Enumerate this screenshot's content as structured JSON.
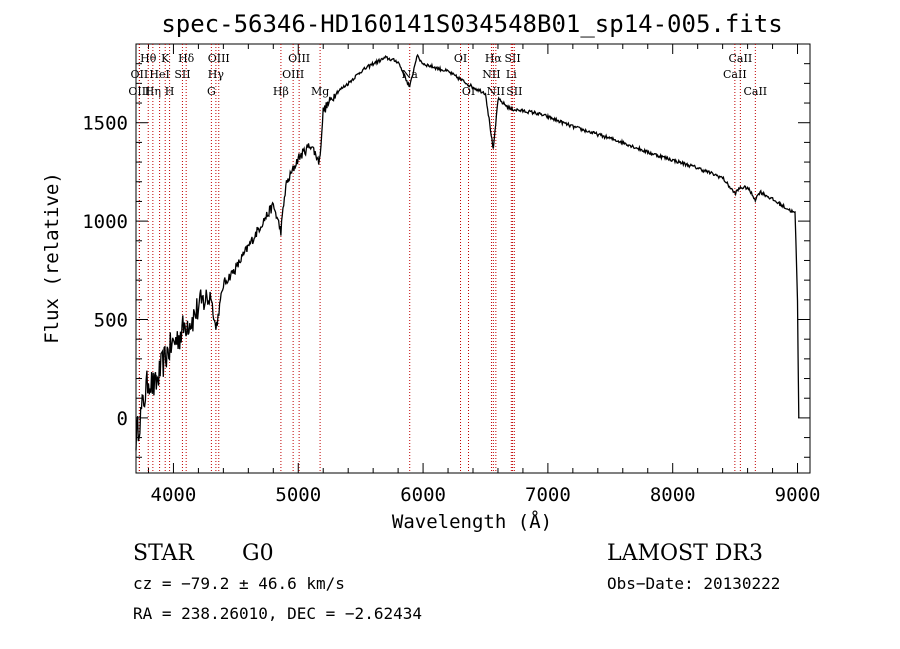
{
  "chart_data": {
    "type": "line",
    "title": "spec-56346-HD160141S034548B01_sp14-005.fits",
    "xlabel": "Wavelength (Å)",
    "ylabel": "Flux (relative)",
    "xlim": [
      3700,
      9100
    ],
    "ylim": [
      -280,
      1900
    ],
    "x_ticks": [
      4000,
      5000,
      6000,
      7000,
      8000,
      9000
    ],
    "x_tick_labels": [
      "4000",
      "5000",
      "6000",
      "7000",
      "8000",
      "9000"
    ],
    "y_ticks": [
      0,
      500,
      1000,
      1500
    ],
    "y_tick_labels": [
      "0",
      "500",
      "1000",
      "1500"
    ],
    "grid": false,
    "series": [
      {
        "name": "spectrum",
        "x": [
          3700,
          3750,
          3800,
          3850,
          3900,
          3950,
          4000,
          4050,
          4100,
          4150,
          4200,
          4250,
          4300,
          4340,
          4400,
          4500,
          4600,
          4700,
          4800,
          4861,
          4900,
          5000,
          5100,
          5170,
          5200,
          5300,
          5400,
          5500,
          5600,
          5700,
          5800,
          5893,
          5950,
          6000,
          6100,
          6200,
          6300,
          6400,
          6500,
          6563,
          6600,
          6700,
          6800,
          6900,
          7000,
          7200,
          7400,
          7600,
          7800,
          8000,
          8200,
          8400,
          8498,
          8542,
          8600,
          8662,
          8700,
          8800,
          8900,
          8980,
          9000,
          9010
        ],
        "values": [
          -100,
          50,
          200,
          150,
          250,
          330,
          380,
          420,
          480,
          500,
          560,
          600,
          620,
          450,
          680,
          760,
          870,
          980,
          1080,
          950,
          1180,
          1320,
          1390,
          1300,
          1560,
          1650,
          1700,
          1760,
          1800,
          1830,
          1810,
          1680,
          1840,
          1800,
          1780,
          1760,
          1720,
          1680,
          1650,
          1360,
          1620,
          1570,
          1560,
          1550,
          1530,
          1480,
          1440,
          1400,
          1350,
          1310,
          1270,
          1220,
          1140,
          1170,
          1170,
          1110,
          1150,
          1110,
          1070,
          1040,
          600,
          0
        ]
      }
    ],
    "lines": [
      {
        "name": "Hθ",
        "x": 3798,
        "row": 0
      },
      {
        "name": "OII",
        "x": 3727,
        "row": 1
      },
      {
        "name": "OIII",
        "x": 3727,
        "row": 2
      },
      {
        "name": "Hη",
        "x": 3835,
        "row": 2
      },
      {
        "name": "K",
        "x": 3934,
        "row": 0
      },
      {
        "name": "HeI",
        "x": 3889,
        "row": 1
      },
      {
        "name": "H",
        "x": 3969,
        "row": 2
      },
      {
        "name": "SII",
        "x": 4072,
        "row": 1
      },
      {
        "name": "Hδ",
        "x": 4102,
        "row": 0
      },
      {
        "name": "OIII",
        "x": 4363,
        "row": 0
      },
      {
        "name": "Hγ",
        "x": 4340,
        "row": 1
      },
      {
        "name": "G",
        "x": 4304,
        "row": 2
      },
      {
        "name": "Hβ",
        "x": 4861,
        "row": 2
      },
      {
        "name": "OIII",
        "x": 4959,
        "row": 1
      },
      {
        "name": "OIII",
        "x": 5007,
        "row": 0
      },
      {
        "name": "Mg",
        "x": 5175,
        "row": 2
      },
      {
        "name": "Na",
        "x": 5893,
        "row": 1
      },
      {
        "name": "OI",
        "x": 6300,
        "row": 0
      },
      {
        "name": "OI",
        "x": 6364,
        "row": 2
      },
      {
        "name": "Hα",
        "x": 6563,
        "row": 0
      },
      {
        "name": "SII",
        "x": 6717,
        "row": 0
      },
      {
        "name": "NII",
        "x": 6548,
        "row": 1
      },
      {
        "name": "Li",
        "x": 6707,
        "row": 1
      },
      {
        "name": "NII",
        "x": 6583,
        "row": 2
      },
      {
        "name": "SII",
        "x": 6731,
        "row": 2
      },
      {
        "name": "CaII",
        "x": 8542,
        "row": 0
      },
      {
        "name": "CaII",
        "x": 8498,
        "row": 1
      },
      {
        "name": "CaII",
        "x": 8662,
        "row": 2
      }
    ]
  },
  "info": {
    "object_class": "STAR",
    "subclass": "G0",
    "survey": "LAMOST DR3",
    "redshift": "cz = −79.2 ± 46.6 km/s",
    "obs_date": "Obs−Date: 20130222",
    "coords": "RA = 238.26010, DEC =  −2.62434"
  }
}
